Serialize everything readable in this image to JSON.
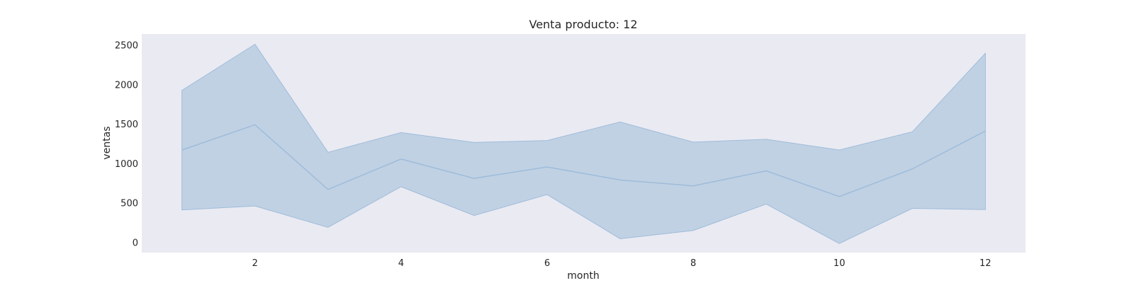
{
  "chart_data": {
    "type": "area",
    "title": "Venta producto: 12",
    "xlabel": "month",
    "ylabel": "ventas",
    "xlim": [
      0.45,
      12.55
    ],
    "ylim": [
      -130,
      2640
    ],
    "x_ticks": [
      2,
      4,
      6,
      8,
      10,
      12
    ],
    "y_ticks": [
      0,
      500,
      1000,
      1500,
      2000,
      2500
    ],
    "grid": false,
    "colors": {
      "plot_background": "#eaeaf2",
      "band_fill": "#b9cde2",
      "line": "#9ebcd9"
    },
    "x": [
      1,
      2,
      3,
      4,
      5,
      6,
      7,
      8,
      9,
      10,
      11,
      12
    ],
    "series": [
      {
        "values": [
          1170,
          1490,
          670,
          1055,
          810,
          955,
          790,
          715,
          905,
          580,
          930,
          1410
        ],
        "lower": [
          410,
          460,
          190,
          705,
          340,
          605,
          45,
          150,
          485,
          -15,
          430,
          415
        ],
        "upper": [
          1925,
          2510,
          1140,
          1390,
          1265,
          1290,
          1525,
          1270,
          1305,
          1170,
          1400,
          2395
        ]
      }
    ]
  }
}
